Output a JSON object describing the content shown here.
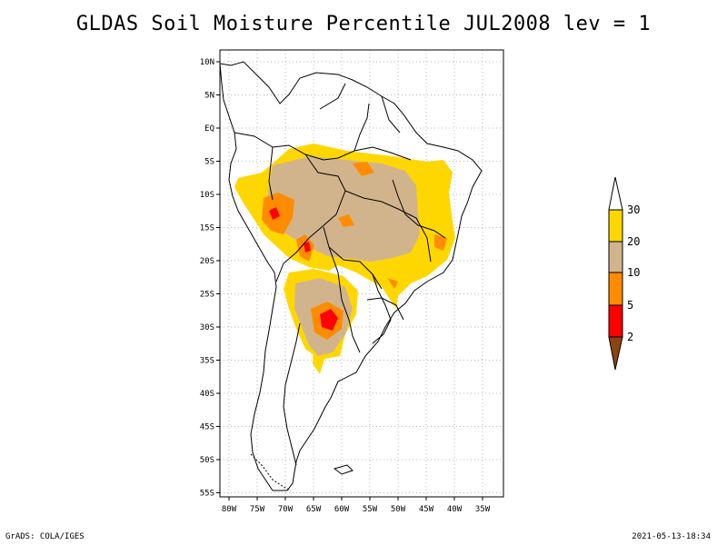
{
  "title": "GLDAS Soil Moisture Percentile JUL2008 lev = 1",
  "axes": {
    "lat_labels": [
      "10N",
      "5N",
      "EQ",
      "5S",
      "10S",
      "15S",
      "20S",
      "25S",
      "30S",
      "35S",
      "40S",
      "45S",
      "50S",
      "55S"
    ],
    "lon_labels": [
      "80W",
      "75W",
      "70W",
      "65W",
      "60W",
      "55W",
      "50W",
      "45W",
      "40W",
      "35W"
    ],
    "grid": "dotted"
  },
  "legend": {
    "placement": "right",
    "labels": [
      "2",
      "5",
      "10",
      "20",
      "30"
    ],
    "colors": {
      "lt2": "#8B4513",
      "2_5": "#FF0000",
      "5_10": "#FF8C00",
      "10_20": "#D2B48C",
      "20_30": "#FFD700",
      "gt30": "#FFFFFF"
    }
  },
  "footer": {
    "left": "GrADS: COLA/IGES",
    "right": "2021-05-13-18:34"
  }
}
